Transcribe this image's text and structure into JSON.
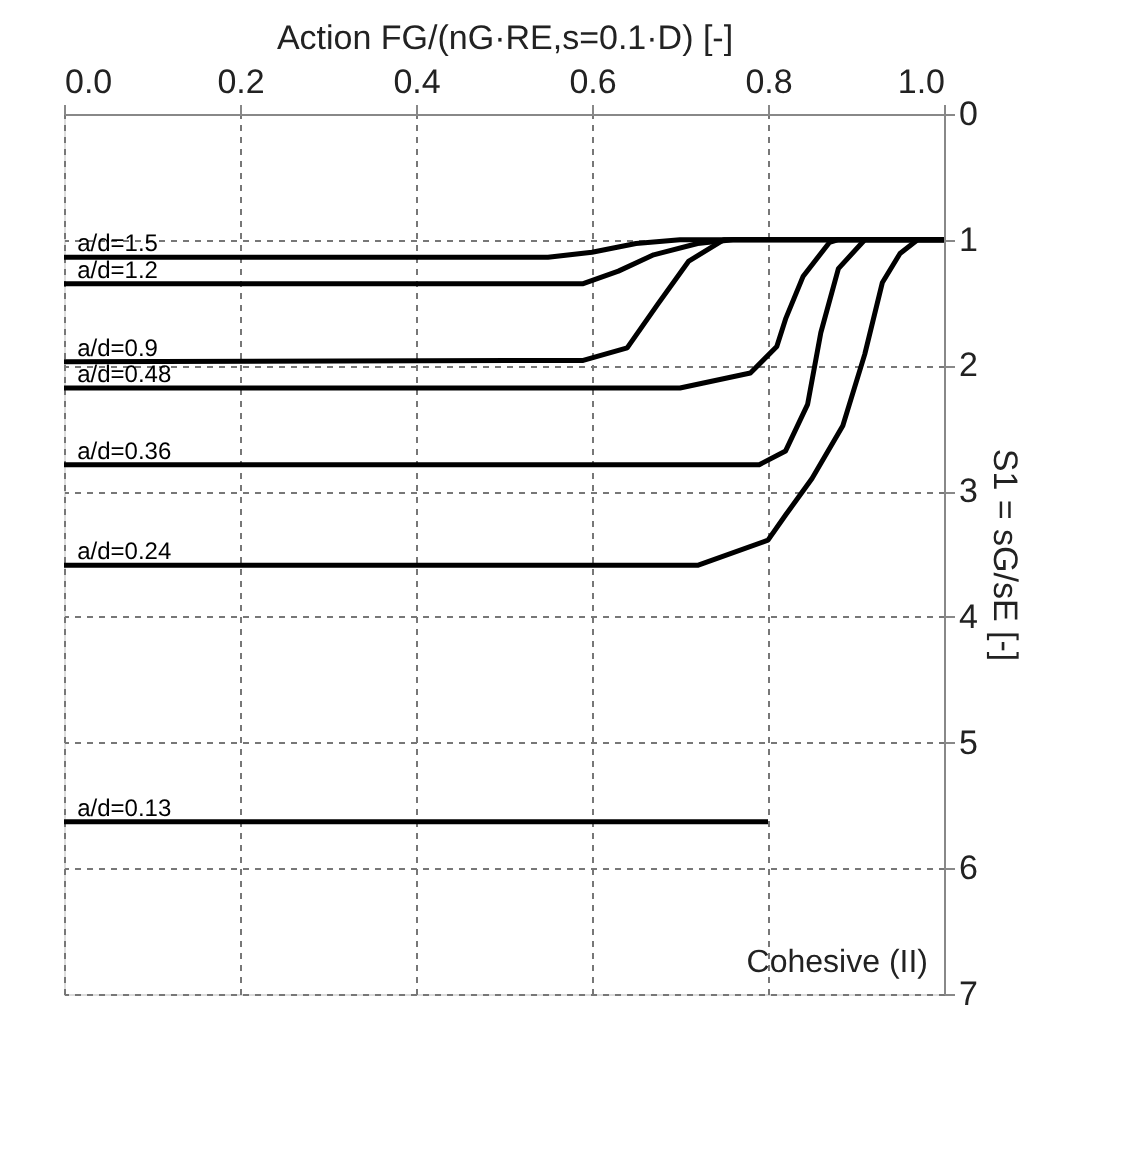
{
  "chart_data": {
    "type": "line",
    "xlabel": "Action  FG/(nG·RE,s=0.1·D)  [-]",
    "ylabel": "S1 = sG/sE  [-]",
    "xlim": [
      0.0,
      1.0
    ],
    "xticks": [
      {
        "value": 0,
        "label": "0.0"
      },
      0.2,
      0.4,
      0.6,
      0.8,
      {
        "value": 1,
        "label": "1.0"
      }
    ],
    "ylim": [
      7,
      0
    ],
    "yticks": [
      0,
      1,
      2,
      3,
      4,
      5,
      6,
      7
    ],
    "grid": true,
    "marker": "none",
    "line_style": "solid",
    "annotations": [
      "Cohesive (II)"
    ],
    "series": [
      {
        "name": "a/d=1.5",
        "color": "#000000",
        "x": [
          0,
          0.55,
          0.6,
          0.65,
          0.7,
          1.0
        ],
        "values": [
          1.14,
          1.14,
          1.1,
          1.03,
          1.0,
          1.0
        ]
      },
      {
        "name": "a/d=1.2",
        "color": "#000000",
        "x": [
          0,
          0.59,
          0.63,
          0.67,
          0.72,
          0.76,
          1.0
        ],
        "values": [
          1.35,
          1.35,
          1.25,
          1.12,
          1.03,
          1.0,
          1.0
        ]
      },
      {
        "name": "a/d=0.9",
        "color": "#000000",
        "x": [
          0,
          0.59,
          0.64,
          0.675,
          0.71,
          0.75,
          1.0
        ],
        "values": [
          1.97,
          1.96,
          1.86,
          1.51,
          1.17,
          1.0,
          1.0
        ]
      },
      {
        "name": "a/d=0.48",
        "color": "#000000",
        "x": [
          0,
          0.7,
          0.78,
          0.81,
          0.82,
          0.84,
          0.87,
          0.88,
          1.0
        ],
        "values": [
          2.18,
          2.18,
          2.06,
          1.85,
          1.63,
          1.29,
          1.02,
          1.0,
          1.0
        ]
      },
      {
        "name": "a/d=0.36",
        "color": "#000000",
        "x": [
          0,
          0.79,
          0.82,
          0.845,
          0.86,
          0.88,
          0.91,
          1.0
        ],
        "values": [
          2.79,
          2.79,
          2.68,
          2.31,
          1.74,
          1.23,
          1.0,
          1.0
        ]
      },
      {
        "name": "a/d=0.24",
        "color": "#000000",
        "x": [
          0,
          0.72,
          0.8,
          0.82,
          0.85,
          0.885,
          0.91,
          0.93,
          0.95,
          0.97,
          1.0
        ],
        "values": [
          3.59,
          3.59,
          3.39,
          3.19,
          2.9,
          2.48,
          1.91,
          1.34,
          1.11,
          1.0,
          1.0
        ]
      },
      {
        "name": "a/d=0.13",
        "color": "#000000",
        "x": [
          0,
          0.8
        ],
        "values": [
          5.63,
          5.63
        ]
      }
    ]
  }
}
